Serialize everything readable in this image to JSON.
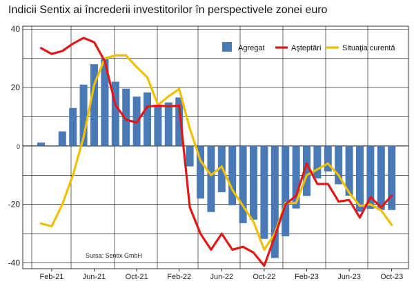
{
  "chart_data": {
    "type": "bar+line",
    "title": "Indicii Sentix ai încrederii investitorilor în perspectivele zonei euro",
    "source_note": "Sursa: Sentix GmbH",
    "ylim": [
      -42,
      41
    ],
    "yticks": [
      40,
      20,
      0,
      -20,
      -40
    ],
    "grid": true,
    "legend_placement": "top-right",
    "x_tick_labels": [
      {
        "label": "Feb-21",
        "index": 1
      },
      {
        "label": "Jun-21",
        "index": 5
      },
      {
        "label": "Oct-21",
        "index": 9
      },
      {
        "label": "Feb-22",
        "index": 13
      },
      {
        "label": "Jun-22",
        "index": 17
      },
      {
        "label": "Oct-22",
        "index": 21
      },
      {
        "label": "Feb-23",
        "index": 25
      },
      {
        "label": "Jun-23",
        "index": 29
      },
      {
        "label": "Oct-23",
        "index": 33
      }
    ],
    "months": [
      "Jan-21",
      "Feb-21",
      "Mar-21",
      "Apr-21",
      "May-21",
      "Jun-21",
      "Jul-21",
      "Aug-21",
      "Sep-21",
      "Oct-21",
      "Nov-21",
      "Dec-21",
      "Jan-22",
      "Feb-22",
      "Mar-22",
      "Apr-22",
      "May-22",
      "Jun-22",
      "Jul-22",
      "Aug-22",
      "Sep-22",
      "Oct-22",
      "Nov-22",
      "Dec-22",
      "Jan-23",
      "Feb-23",
      "Mar-23",
      "Apr-23",
      "May-23",
      "Jun-23",
      "Jul-23",
      "Aug-23",
      "Sep-23",
      "Oct-23"
    ],
    "series": [
      {
        "name": "Agregat",
        "kind": "bar",
        "color": "#4a7ab5",
        "values": [
          1.2,
          -0.2,
          5,
          13,
          21,
          28,
          29.8,
          22,
          19.6,
          16.9,
          18.3,
          13.5,
          14.9,
          16.6,
          -7,
          -18,
          -22.6,
          -15.8,
          -20.3,
          -26.4,
          -25.2,
          -31.8,
          -38.3,
          -30.9,
          -21.4,
          -17.1,
          -11.1,
          -8.7,
          -13.1,
          -17,
          -22.5,
          -21.5,
          -21.9,
          -21.9
        ]
      },
      {
        "name": "Aşteptări",
        "kind": "line",
        "color": "#e01818",
        "values": [
          33.5,
          31.5,
          32.5,
          35,
          37,
          35.5,
          29,
          14,
          9,
          8,
          13.5,
          13.8,
          13.6,
          13.8,
          -21,
          -30,
          -35.5,
          -30,
          -35.5,
          -34.5,
          -36.5,
          -41,
          -31,
          -20,
          -17,
          -6,
          -13,
          -13,
          -19,
          -18.5,
          -24.5,
          -17.5,
          -21,
          -17
        ]
      },
      {
        "name": "Situaţia curentă",
        "kind": "line",
        "color": "#f0c000",
        "values": [
          -26.5,
          -27.5,
          -20,
          -10,
          3,
          21,
          30,
          31,
          31,
          27,
          23.5,
          14,
          17,
          19.5,
          6,
          -5,
          -10,
          -7,
          -15,
          -20.5,
          -26,
          -35.5,
          -30,
          -19.5,
          -19.5,
          -10,
          -8,
          -6,
          -10,
          -16,
          -20.5,
          -20,
          -22,
          -27
        ]
      }
    ]
  }
}
